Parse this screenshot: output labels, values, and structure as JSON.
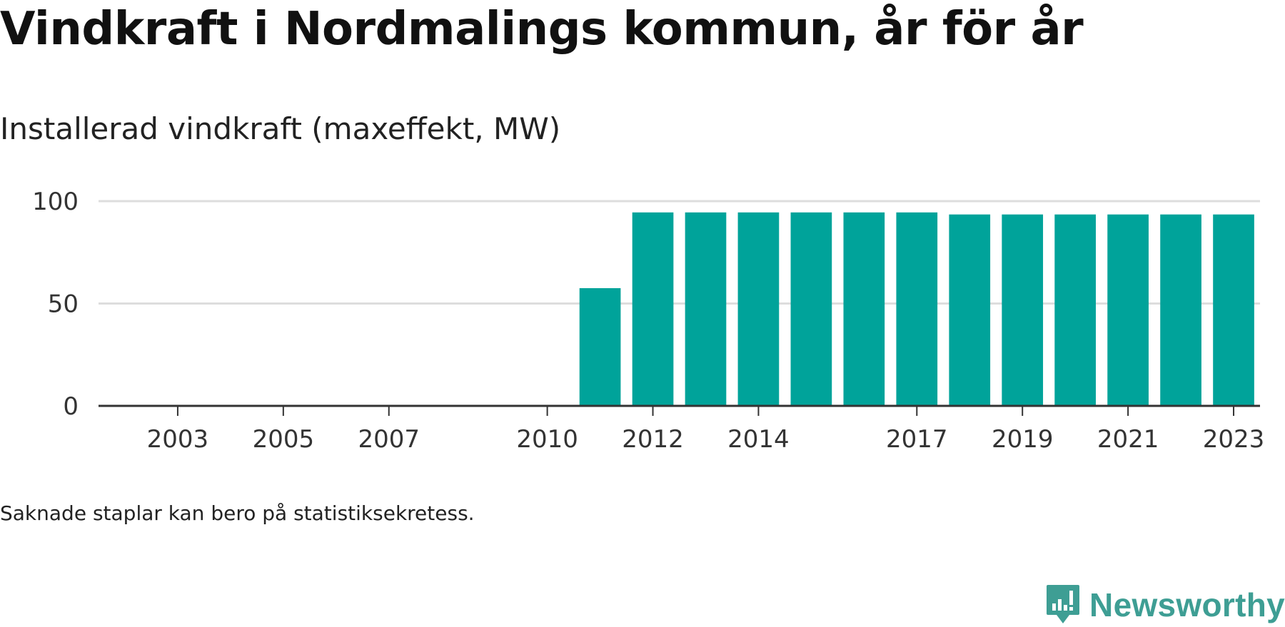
{
  "header": {
    "title": "Vindkraft i Nordmalings kommun, år för år",
    "subtitle": "Installerad vindkraft (maxeffekt, MW)"
  },
  "footer": {
    "note": "Saknade staplar kan bero på statistiksekretess.",
    "brand_name": "Newsworthy"
  },
  "colors": {
    "bar": "#00a39a",
    "grid": "#dddddd",
    "axis": "#333333",
    "brand": "#3e9e94"
  },
  "chart_data": {
    "type": "bar",
    "title": "Vindkraft i Nordmalings kommun, år för år",
    "subtitle": "Installerad vindkraft (maxeffekt, MW)",
    "xlabel": "",
    "ylabel": "",
    "categories": [
      "2002",
      "2003",
      "2004",
      "2005",
      "2006",
      "2007",
      "2008",
      "2009",
      "2010",
      "2011",
      "2012",
      "2013",
      "2014",
      "2015",
      "2016",
      "2017",
      "2018",
      "2019",
      "2020",
      "2021",
      "2022",
      "2023"
    ],
    "x_tick_labels": [
      "2003",
      "2005",
      "2007",
      "2010",
      "2012",
      "2014",
      "2017",
      "2019",
      "2021",
      "2023"
    ],
    "values": [
      0,
      0,
      0,
      0,
      0,
      0,
      0,
      0,
      0,
      57.5,
      94.5,
      94.5,
      94.5,
      94.5,
      94.5,
      94.5,
      93.5,
      93.5,
      93.5,
      93.5,
      93.5,
      93.5
    ],
    "y_ticks": [
      0,
      50,
      100
    ],
    "y_tick_labels": [
      "0",
      "50",
      "100"
    ],
    "ylim": [
      0,
      100
    ],
    "grid": true,
    "legend": "none"
  }
}
